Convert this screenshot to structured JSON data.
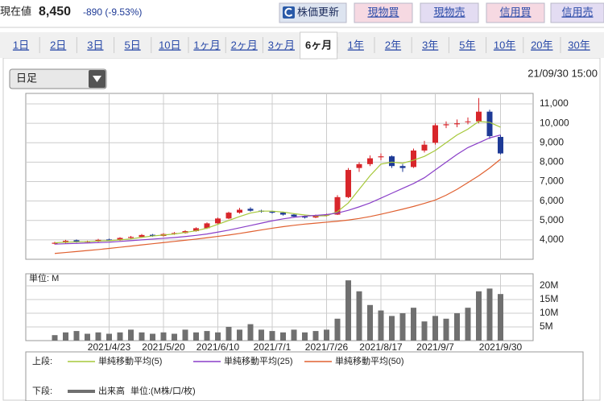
{
  "header": {
    "price_label": "現在値",
    "price": "8,450",
    "change": "-890 (-9.53%)"
  },
  "buttons": [
    "株価更新",
    "現物買",
    "現物売",
    "信用買",
    "信用売"
  ],
  "tabs": {
    "items": [
      "1日",
      "2日",
      "3日",
      "5日",
      "10日",
      "1ヶ月",
      "2ヶ月",
      "3ヶ月",
      "6ヶ月",
      "1年",
      "2年",
      "3年",
      "5年",
      "10年",
      "20年",
      "30年"
    ],
    "selected": 8
  },
  "controls": {
    "interval": "日足",
    "timestamp": "21/09/30 15:00"
  },
  "chart_data": [
    {
      "type": "candlestick",
      "legend_label": "上段:",
      "candles": {
        "up_color": "#d8262b",
        "down_color": "#1e3a96",
        "open": [
          3800,
          3850,
          3980,
          3900,
          3920,
          4020,
          3980,
          4100,
          4150,
          4260,
          4200,
          4300,
          4350,
          4450,
          4600,
          4850,
          5100,
          5400,
          5600,
          5500,
          5450,
          5400,
          5300,
          5200,
          5150,
          5250,
          5300,
          6200,
          7700,
          7900,
          8250,
          8300,
          7800,
          7750,
          8600,
          9000,
          9900,
          9950,
          10100,
          10100,
          10600,
          9300
        ],
        "high": [
          3900,
          4000,
          4020,
          3960,
          4050,
          4060,
          4140,
          4200,
          4300,
          4300,
          4340,
          4400,
          4500,
          4650,
          4900,
          5150,
          5450,
          5650,
          5680,
          5550,
          5500,
          5450,
          5350,
          5250,
          5300,
          5350,
          6300,
          7700,
          8000,
          8350,
          8450,
          8350,
          7900,
          8700,
          9100,
          10000,
          10100,
          10200,
          10300,
          11300,
          10700,
          9400
        ],
        "low": [
          3760,
          3820,
          3860,
          3860,
          3890,
          3940,
          3950,
          4060,
          4110,
          4160,
          4170,
          4260,
          4320,
          4420,
          4560,
          4800,
          5060,
          5350,
          5450,
          5400,
          5350,
          5250,
          5150,
          5100,
          5120,
          5200,
          5280,
          6150,
          7500,
          7800,
          8100,
          7700,
          7500,
          7700,
          8500,
          8900,
          9750,
          9800,
          9950,
          10000,
          9200,
          8400
        ],
        "close": [
          3850,
          3950,
          3900,
          3920,
          4000,
          3980,
          4100,
          4150,
          4250,
          4200,
          4300,
          4350,
          4450,
          4600,
          4850,
          5100,
          5400,
          5550,
          5500,
          5450,
          5400,
          5300,
          5200,
          5150,
          5250,
          5300,
          6200,
          7600,
          7900,
          8200,
          8300,
          7800,
          7700,
          8600,
          8900,
          9900,
          9950,
          10000,
          10100,
          10600,
          9340,
          8450
        ]
      },
      "series": [
        {
          "name": "単純移動平均(5)",
          "color": "#a6c83a",
          "values": [
            3850,
            3880,
            3900,
            3910,
            3940,
            3960,
            4000,
            4050,
            4130,
            4200,
            4250,
            4300,
            4380,
            4470,
            4600,
            4800,
            5000,
            5200,
            5380,
            5480,
            5480,
            5430,
            5350,
            5280,
            5230,
            5240,
            5450,
            5900,
            6600,
            7300,
            7900,
            8000,
            7950,
            8100,
            8300,
            8600,
            9000,
            9400,
            9700,
            10100,
            10050,
            9800
          ]
        },
        {
          "name": "単純移動平均(25)",
          "color": "#8a3fc8",
          "values": [
            3780,
            3800,
            3820,
            3840,
            3860,
            3880,
            3920,
            3960,
            4000,
            4040,
            4080,
            4120,
            4170,
            4230,
            4300,
            4400,
            4500,
            4620,
            4740,
            4860,
            4980,
            5080,
            5160,
            5220,
            5260,
            5300,
            5380,
            5520,
            5700,
            5900,
            6150,
            6400,
            6650,
            6900,
            7200,
            7600,
            8000,
            8400,
            8750,
            9000,
            9250,
            9400
          ]
        },
        {
          "name": "単純移動平均(50)",
          "color": "#e06030",
          "values": [
            3300,
            3350,
            3400,
            3450,
            3500,
            3560,
            3620,
            3680,
            3740,
            3800,
            3860,
            3920,
            3980,
            4040,
            4110,
            4180,
            4250,
            4330,
            4420,
            4510,
            4600,
            4680,
            4750,
            4810,
            4860,
            4910,
            4960,
            5020,
            5100,
            5200,
            5320,
            5450,
            5580,
            5720,
            5880,
            6050,
            6300,
            6600,
            6950,
            7300,
            7700,
            8150
          ]
        }
      ],
      "ylim": [
        3000,
        11540
      ],
      "yticks": [
        {
          "value": 4000,
          "label": "4,000"
        },
        {
          "value": 5000,
          "label": "5,000"
        },
        {
          "value": 6000,
          "label": "6,000"
        },
        {
          "value": 7000,
          "label": "7,000"
        },
        {
          "value": 8000,
          "label": "8,000"
        },
        {
          "value": 9000,
          "label": "9,000"
        },
        {
          "value": 10000,
          "label": "10,000"
        },
        {
          "value": 11000,
          "label": "11,000"
        }
      ],
      "grid": true
    },
    {
      "type": "bar",
      "unit_label": "単位: M",
      "legend_label": "下段:",
      "legend_note": "単位:(M株/口/枚)",
      "categories": [
        null,
        null,
        null,
        null,
        null,
        "2021/4/23",
        null,
        null,
        null,
        null,
        "2021/5/20",
        null,
        null,
        null,
        null,
        "2021/6/10",
        null,
        null,
        null,
        null,
        "2021/7/1",
        null,
        null,
        null,
        null,
        "2021/7/26",
        null,
        null,
        null,
        null,
        "2021/8/17",
        null,
        null,
        null,
        null,
        "2021/9/7",
        null,
        null,
        null,
        null,
        null,
        "2021/9/30"
      ],
      "series": [
        {
          "name": "出来高",
          "color": "#707070",
          "values": [
            2,
            3,
            3.5,
            2.5,
            3,
            2.5,
            3,
            4,
            3,
            2.5,
            3,
            2.5,
            4,
            3,
            3.5,
            3,
            5,
            4,
            6,
            4,
            3.5,
            3,
            4,
            3,
            3.5,
            4,
            8,
            22,
            18,
            13,
            11,
            9,
            10,
            12,
            7,
            9,
            8,
            10,
            12,
            18,
            19,
            17
          ]
        }
      ],
      "ylim": [
        0,
        24.4
      ],
      "yticks": [
        {
          "value": 5,
          "label": "5M"
        },
        {
          "value": 10,
          "label": "10M"
        },
        {
          "value": 15,
          "label": "15M"
        },
        {
          "value": 20,
          "label": "20M"
        }
      ],
      "grid": true
    }
  ]
}
